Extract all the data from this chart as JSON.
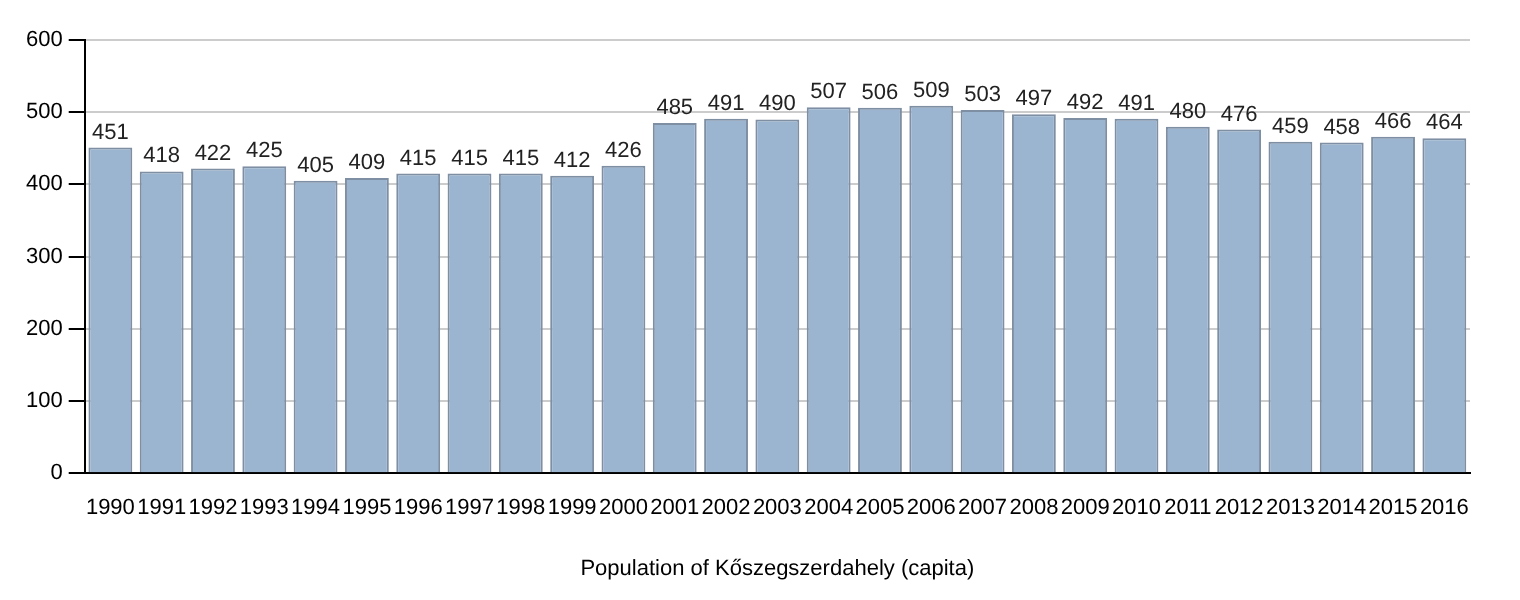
{
  "chart_data": {
    "type": "bar",
    "xlabel": "Population of Kőszegszerdahely (capita)",
    "categories": [
      "1990",
      "1991",
      "1992",
      "1993",
      "1994",
      "1995",
      "1996",
      "1997",
      "1998",
      "1999",
      "2000",
      "2001",
      "2002",
      "2003",
      "2004",
      "2005",
      "2006",
      "2007",
      "2008",
      "2009",
      "2010",
      "2011",
      "2012",
      "2013",
      "2014",
      "2015",
      "2016"
    ],
    "values": [
      451,
      418,
      422,
      425,
      405,
      409,
      415,
      415,
      415,
      412,
      426,
      485,
      491,
      490,
      507,
      506,
      509,
      503,
      497,
      492,
      491,
      480,
      476,
      459,
      458,
      466,
      464
    ],
    "color": "#9bb4d0",
    "ylim": [
      0,
      600
    ],
    "yticks": [
      0,
      100,
      200,
      300,
      400,
      500,
      600
    ],
    "grid": "y",
    "data_labels": true
  }
}
